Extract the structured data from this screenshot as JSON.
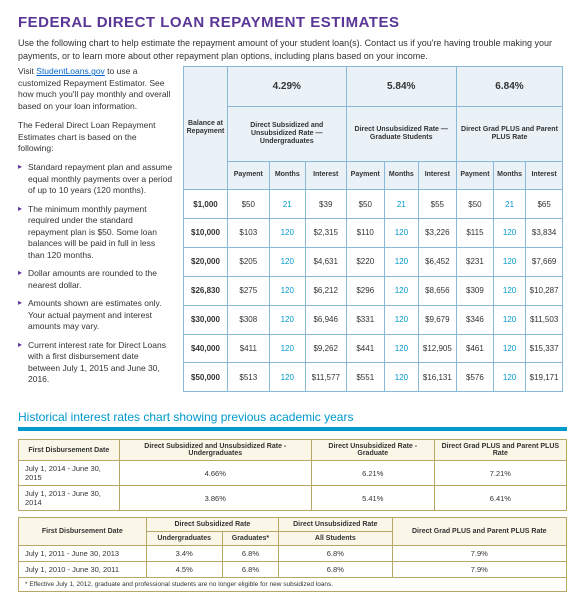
{
  "title": "FEDERAL DIRECT LOAN REPAYMENT ESTIMATES",
  "intro": "Use the following chart to help estimate the repayment amount of your student loan(s). Contact us if you're having trouble making your payments, or to learn more about other repayment plan options, including plans based on your income.",
  "visit": {
    "pre": "Visit ",
    "link": "StudentLoans.gov",
    "post": " to use a customized Repayment Estimator. See how much you'll pay monthly and overall based on your loan information."
  },
  "based": "The Federal Direct Loan Repayment Estimates chart is based on the following:",
  "bullets": [
    "Standard repayment plan and assume equal monthly payments over a period of up to 10 years (120 months).",
    "The minimum monthly payment required under the standard repayment plan is $50. Some loan balances will be paid in full in less than 120 months.",
    "Dollar amounts are rounded to the nearest dollar.",
    "Amounts shown are estimates only. Your actual payment and interest amounts may vary.",
    "Current interest rate for Direct Loans with a first disbursement date between July 1, 2015 and June 30, 2016."
  ],
  "tbl": {
    "rates": [
      "4.29%",
      "5.84%",
      "6.84%"
    ],
    "heads": [
      "Direct Subsidized and Unsubsidized Rate — Undergraduates",
      "Direct Unsubsidized Rate — Graduate Students",
      "Direct Grad PLUS and Parent PLUS Rate"
    ],
    "bal": "Balance at Repayment",
    "cols": [
      "Payment",
      "Months",
      "Interest"
    ],
    "rows": [
      {
        "b": "$1,000",
        "c": [
          "$50",
          "21",
          "$39",
          "$50",
          "21",
          "$55",
          "$50",
          "21",
          "$65"
        ]
      },
      {
        "b": "$10,000",
        "c": [
          "$103",
          "120",
          "$2,315",
          "$110",
          "120",
          "$3,226",
          "$115",
          "120",
          "$3,834"
        ]
      },
      {
        "b": "$20,000",
        "c": [
          "$205",
          "120",
          "$4,631",
          "$220",
          "120",
          "$6,452",
          "$231",
          "120",
          "$7,669"
        ]
      },
      {
        "b": "$26,830",
        "c": [
          "$275",
          "120",
          "$6,212",
          "$296",
          "120",
          "$8,656",
          "$309",
          "120",
          "$10,287"
        ]
      },
      {
        "b": "$30,000",
        "c": [
          "$308",
          "120",
          "$6,946",
          "$331",
          "120",
          "$9,679",
          "$346",
          "120",
          "$11,503"
        ]
      },
      {
        "b": "$40,000",
        "c": [
          "$411",
          "120",
          "$9,262",
          "$441",
          "120",
          "$12,905",
          "$461",
          "120",
          "$15,337"
        ]
      },
      {
        "b": "$50,000",
        "c": [
          "$513",
          "120",
          "$11,577",
          "$551",
          "120",
          "$16,131",
          "$576",
          "120",
          "$19,171"
        ]
      }
    ]
  },
  "h2": "Historical interest rates chart showing previous academic years",
  "h1": {
    "cols": [
      "First Disbursement Date",
      "Direct Subsidized and Unsubsidized Rate - Undergraduates",
      "Direct Unsubsidized Rate - Graduate",
      "Direct Grad PLUS and Parent PLUS Rate"
    ],
    "rows": [
      [
        "July 1, 2014 - June 30, 2015",
        "4.66%",
        "6.21%",
        "7.21%"
      ],
      [
        "July 1, 2013 - June 30, 2014",
        "3.86%",
        "5.41%",
        "6.41%"
      ]
    ]
  },
  "h2b": {
    "cols": [
      "First Disbursement Date",
      "Direct Subsidized Rate",
      "Direct Unsubsidized Rate",
      "Direct Grad PLUS and Parent PLUS Rate"
    ],
    "sub": [
      "Undergraduates",
      "Graduates*",
      "All Students",
      ""
    ],
    "rows": [
      [
        "July 1, 2011 - June 30, 2013",
        "3.4%",
        "6.8%",
        "6.8%",
        "7.9%"
      ],
      [
        "July 1, 2010 - June 30, 2011",
        "4.5%",
        "6.8%",
        "6.8%",
        "7.9%"
      ]
    ]
  },
  "note": "* Effective July 1, 2012, graduate and professional students are no longer eligible for new subsidized loans."
}
